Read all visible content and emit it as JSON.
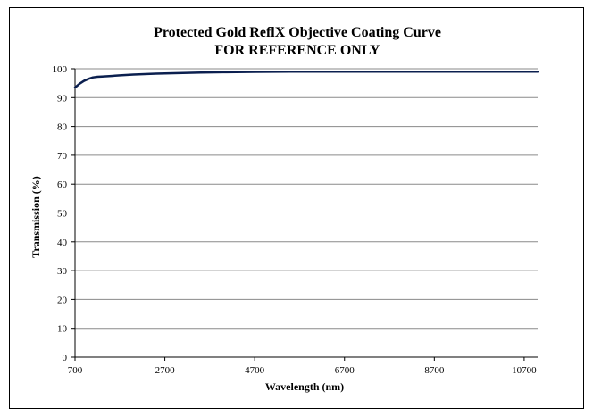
{
  "chart_data": {
    "type": "line",
    "title": "Protected Gold ReflX Objective Coating Curve",
    "subtitle": "FOR REFERENCE ONLY",
    "xlabel": "Wavelength (nm)",
    "ylabel": "Transmission (%)",
    "xlim": [
      700,
      11000
    ],
    "ylim": [
      0,
      100
    ],
    "x_ticks": [
      "700",
      "2700",
      "4700",
      "6700",
      "8700",
      "10700"
    ],
    "y_ticks": [
      "0",
      "10",
      "20",
      "30",
      "40",
      "50",
      "60",
      "70",
      "80",
      "90",
      "100"
    ],
    "grid": true,
    "legend": "none",
    "series_color": "#0b1f4f",
    "series": [
      {
        "x": [
          700,
          800,
          900,
          1000,
          1100,
          1200,
          1300,
          1500,
          1700,
          2000,
          2500,
          3000,
          3500,
          4000,
          4700,
          5500,
          6700,
          7700,
          8700,
          9700,
          10700,
          11000
        ],
        "y": [
          93.5,
          94.8,
          95.8,
          96.5,
          97.0,
          97.2,
          97.3,
          97.5,
          97.7,
          98.0,
          98.3,
          98.5,
          98.7,
          98.8,
          98.9,
          99.0,
          99.0,
          99.0,
          99.0,
          99.0,
          99.0,
          99.0
        ]
      }
    ]
  }
}
